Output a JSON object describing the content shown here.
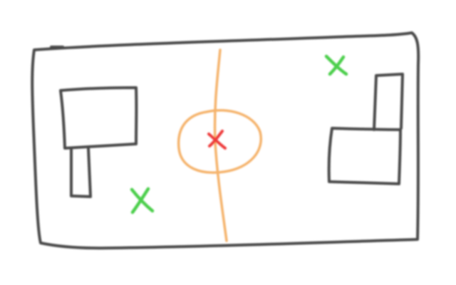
{
  "sketch": {
    "colors": {
      "outline": "#4a4a4a",
      "center_line": "#f5b26b",
      "center_circle": "#f5b26b",
      "center_mark": "#ee3b3b",
      "green_mark": "#4ccf4c",
      "background": "#ffffff"
    },
    "marks": [
      {
        "name": "center-spot-mark",
        "shape": "x",
        "color": "red"
      },
      {
        "name": "green-x-mark-left",
        "shape": "x",
        "color": "green"
      },
      {
        "name": "green-x-mark-right",
        "shape": "x",
        "color": "green"
      }
    ]
  }
}
